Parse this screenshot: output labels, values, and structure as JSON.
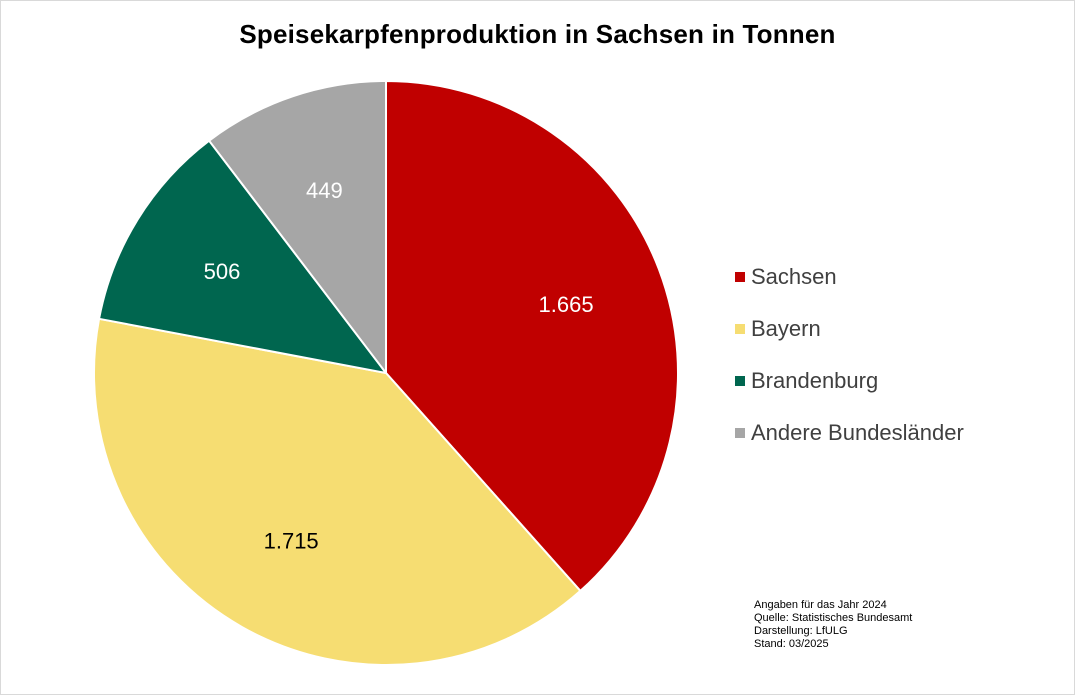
{
  "chart_data": {
    "type": "pie",
    "title": "Speisekarpfenproduktion in Sachsen in Tonnen",
    "categories": [
      "Sachsen",
      "Bayern",
      "Brandenburg",
      "Andere Bundesländer"
    ],
    "values": [
      1665,
      1715,
      506,
      449
    ],
    "value_labels": [
      "1.665",
      "1.715",
      "506",
      "449"
    ],
    "colors": [
      "#C00000",
      "#F6DD72",
      "#00664F",
      "#A6A6A6"
    ],
    "label_colors": [
      "#FFFFFF",
      "#000000",
      "#FFFFFF",
      "#FFFFFF"
    ],
    "legend_position": "right",
    "start": "12 o'clock, clockwise"
  },
  "footnote": {
    "line1": "Angaben für  das Jahr 2024",
    "line2": "Quelle: Statistisches Bundesamt",
    "line3": "Darstellung: LfULG",
    "line4": "Stand: 03/2025"
  }
}
